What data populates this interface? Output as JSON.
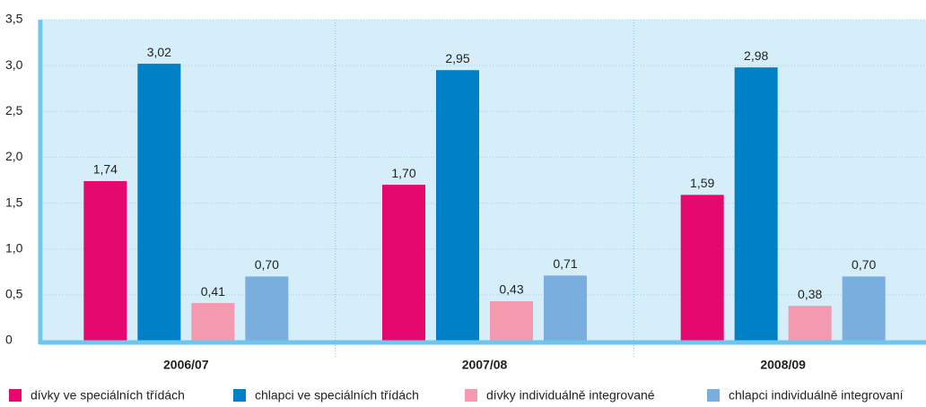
{
  "chart_data": {
    "type": "bar",
    "categories": [
      "2006/07",
      "2007/08",
      "2008/09"
    ],
    "series": [
      {
        "name": "dívky ve speciálních třídách",
        "color": "#e5086e",
        "values": [
          1.74,
          1.7,
          1.59
        ],
        "value_labels": [
          "1,74",
          "1,70",
          "1,59"
        ]
      },
      {
        "name": "chlapci ve speciálních třídách",
        "color": "#0080c6",
        "values": [
          3.02,
          2.95,
          2.98
        ],
        "value_labels": [
          "3,02",
          "2,95",
          "2,98"
        ]
      },
      {
        "name": "dívky individuálně integrované",
        "color": "#f49ab0",
        "values": [
          0.41,
          0.43,
          0.38
        ],
        "value_labels": [
          "0,41",
          "0,43",
          "0,38"
        ]
      },
      {
        "name": "chlapci individuálně integrovaní",
        "color": "#7aaede",
        "values": [
          0.7,
          0.71,
          0.7
        ],
        "value_labels": [
          "0,70",
          "0,71",
          "0,70"
        ]
      }
    ],
    "ylim": [
      0,
      3.5
    ],
    "yticks": [
      0,
      {
        "value": 0.5,
        "label": "0,5"
      },
      {
        "value": 1,
        "label": "1,0"
      },
      {
        "value": 1.5,
        "label": "1,5"
      },
      {
        "value": 2,
        "label": "2,0"
      },
      {
        "value": 2.5,
        "label": "2,5"
      },
      {
        "value": 3,
        "label": "3,0"
      },
      {
        "value": 3.5,
        "label": "3,5"
      }
    ],
    "grid": true
  }
}
